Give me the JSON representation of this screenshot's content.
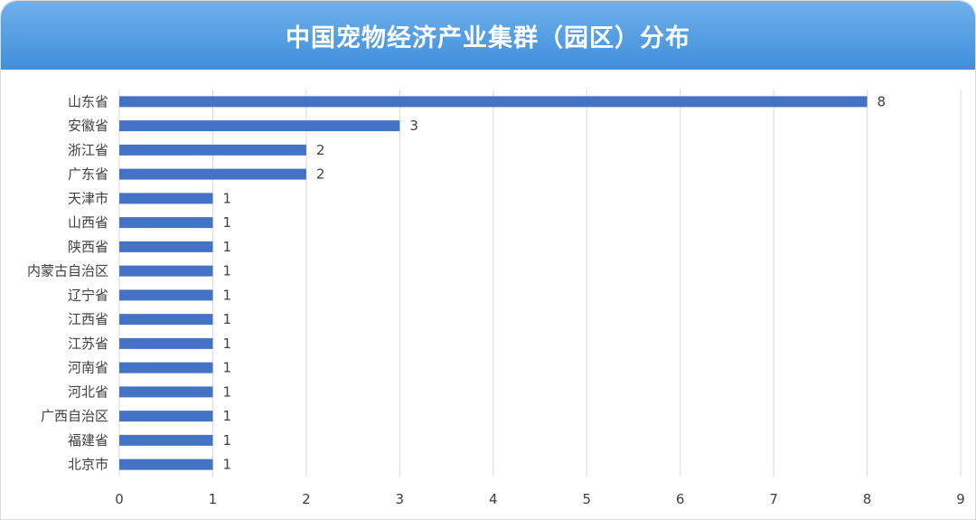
{
  "header": {
    "title": "中国宠物经济产业集群（园区）分布"
  },
  "colors": {
    "header_top": "#6fb0ea",
    "header_bottom": "#3f8fdc",
    "bar": "#4472c4",
    "grid": "#d9d9d9"
  },
  "chart_data": {
    "type": "bar",
    "orientation": "horizontal",
    "title": "中国宠物经济产业集群（园区）分布",
    "xlabel": "",
    "ylabel": "",
    "xlim": [
      0,
      9
    ],
    "xticks": [
      0,
      1,
      2,
      3,
      4,
      5,
      6,
      7,
      8,
      9
    ],
    "grid": "vertical",
    "categories": [
      "山东省",
      "安徽省",
      "浙江省",
      "广东省",
      "天津市",
      "山西省",
      "陕西省",
      "内蒙古自治区",
      "辽宁省",
      "江西省",
      "江苏省",
      "河南省",
      "河北省",
      "广西自治区",
      "福建省",
      "北京市"
    ],
    "values": [
      8,
      3,
      2,
      2,
      1,
      1,
      1,
      1,
      1,
      1,
      1,
      1,
      1,
      1,
      1,
      1
    ]
  }
}
